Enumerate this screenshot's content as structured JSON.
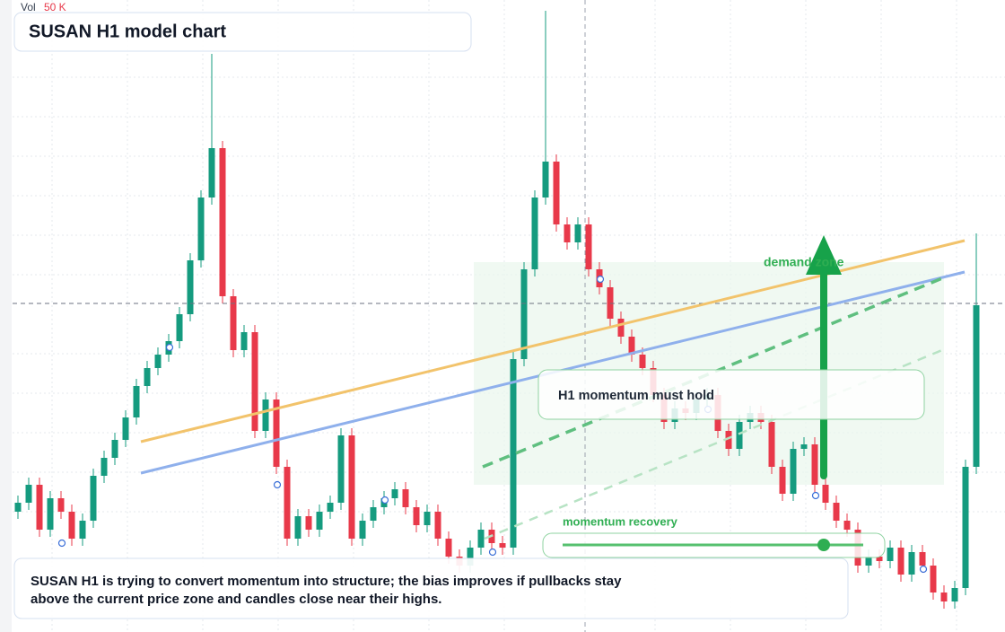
{
  "chart_data": {
    "type": "candlestick",
    "title": "SUSAN H1 model chart",
    "volume_label": "Vol",
    "volume_value": "50 K",
    "annotations": {
      "zone_label": "demand zone",
      "hold_label": "H1 momentum must hold",
      "recovery_label": "momentum recovery",
      "note_lines": [
        "SUSAN H1 is trying to convert momentum into structure; the bias improves if pullbacks stay",
        "above the current price zone and candles close near their highs."
      ]
    },
    "up_color": "#159b7f",
    "down_color": "#e8394a",
    "ylim": [
      0,
      704
    ],
    "open": [
      134,
      144,
      164,
      114,
      149,
      134,
      104,
      124,
      174,
      194,
      214,
      239,
      274,
      294,
      309,
      324,
      354,
      414,
      484,
      539,
      374,
      314,
      334,
      224,
      259,
      184,
      104,
      129,
      114,
      134,
      144,
      219,
      104,
      124,
      139,
      149,
      159,
      139,
      119,
      134,
      104,
      84,
      74,
      94,
      114,
      99,
      94,
      304,
      404,
      484,
      524,
      454,
      434,
      454,
      404,
      384,
      349,
      329,
      309,
      294,
      264,
      234,
      249,
      244,
      259,
      264,
      224,
      204,
      234,
      244,
      234,
      184,
      154,
      204,
      209,
      164,
      144,
      124,
      114,
      74,
      84,
      79,
      94,
      64,
      89,
      74,
      44,
      34,
      49,
      184
    ],
    "high": [
      152,
      172,
      172,
      157,
      157,
      142,
      132,
      182,
      202,
      222,
      247,
      282,
      302,
      317,
      332,
      362,
      422,
      492,
      644,
      547,
      382,
      342,
      342,
      267,
      267,
      192,
      137,
      137,
      142,
      152,
      227,
      227,
      132,
      147,
      157,
      167,
      167,
      147,
      142,
      142,
      112,
      92,
      102,
      122,
      122,
      107,
      312,
      412,
      492,
      692,
      532,
      462,
      462,
      462,
      412,
      392,
      357,
      337,
      317,
      302,
      272,
      257,
      257,
      267,
      272,
      272,
      232,
      242,
      252,
      252,
      242,
      192,
      212,
      217,
      217,
      172,
      152,
      132,
      122,
      92,
      92,
      102,
      102,
      97,
      97,
      82,
      52,
      57,
      192,
      444
    ],
    "low": [
      126,
      136,
      106,
      106,
      126,
      96,
      96,
      116,
      166,
      186,
      206,
      231,
      266,
      286,
      301,
      316,
      346,
      406,
      476,
      366,
      306,
      306,
      216,
      216,
      176,
      96,
      96,
      106,
      106,
      126,
      136,
      96,
      96,
      116,
      131,
      141,
      131,
      111,
      111,
      96,
      76,
      66,
      66,
      86,
      91,
      86,
      86,
      296,
      396,
      476,
      446,
      426,
      426,
      396,
      376,
      341,
      321,
      301,
      286,
      256,
      226,
      226,
      236,
      236,
      251,
      216,
      196,
      196,
      226,
      226,
      176,
      146,
      146,
      196,
      156,
      136,
      116,
      106,
      66,
      66,
      71,
      71,
      56,
      56,
      66,
      36,
      26,
      26,
      41,
      176
    ],
    "close": [
      144,
      164,
      114,
      149,
      134,
      104,
      124,
      174,
      194,
      214,
      239,
      274,
      294,
      309,
      324,
      354,
      414,
      484,
      539,
      374,
      314,
      334,
      224,
      259,
      184,
      104,
      129,
      114,
      134,
      144,
      219,
      104,
      124,
      139,
      149,
      159,
      139,
      119,
      134,
      104,
      84,
      74,
      94,
      114,
      99,
      94,
      304,
      404,
      484,
      524,
      454,
      434,
      454,
      404,
      384,
      349,
      329,
      309,
      294,
      264,
      234,
      249,
      244,
      259,
      264,
      224,
      204,
      234,
      244,
      234,
      184,
      154,
      204,
      209,
      164,
      144,
      124,
      114,
      74,
      84,
      79,
      94,
      64,
      89,
      74,
      44,
      34,
      49,
      184,
      364
    ]
  }
}
